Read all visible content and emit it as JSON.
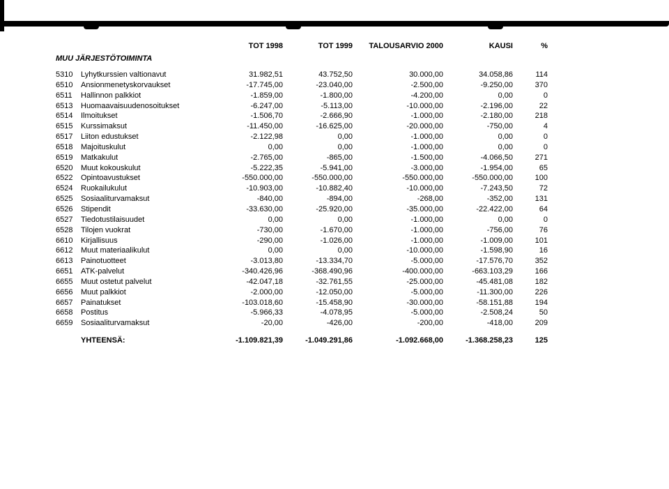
{
  "headers": {
    "c1": "TOT 1998",
    "c2": "TOT 1999",
    "c3": "TALOUSARVIO 2000",
    "c4": "KAUSI",
    "c5": "%"
  },
  "section_title": "MUU JÄRJESTÖTOIMINTA",
  "rows": [
    {
      "code": "5310",
      "label": "Lyhytkurssien valtionavut",
      "c1": "31.982,51",
      "c2": "43.752,50",
      "c3": "30.000,00",
      "c4": "34.058,86",
      "c5": "114"
    },
    {
      "code": "6510",
      "label": "Ansionmenetyskorvaukset",
      "c1": "-17.745,00",
      "c2": "-23.040,00",
      "c3": "-2.500,00",
      "c4": "-9.250,00",
      "c5": "370"
    },
    {
      "code": "6511",
      "label": "Hallinnon palkkiot",
      "c1": "-1.859,00",
      "c2": "-1.800,00",
      "c3": "-4.200,00",
      "c4": "0,00",
      "c5": "0"
    },
    {
      "code": "6513",
      "label": "Huomaavaisuudenosoitukset",
      "c1": "-6.247,00",
      "c2": "-5.113,00",
      "c3": "-10.000,00",
      "c4": "-2.196,00",
      "c5": "22"
    },
    {
      "code": "6514",
      "label": "Ilmoitukset",
      "c1": "-1.506,70",
      "c2": "-2.666,90",
      "c3": "-1.000,00",
      "c4": "-2.180,00",
      "c5": "218"
    },
    {
      "code": "6515",
      "label": "Kurssimaksut",
      "c1": "-11.450,00",
      "c2": "-16.625,00",
      "c3": "-20.000,00",
      "c4": "-750,00",
      "c5": "4"
    },
    {
      "code": "6517",
      "label": "Liiton edustukset",
      "c1": "-2.122,98",
      "c2": "0,00",
      "c3": "-1.000,00",
      "c4": "0,00",
      "c5": "0"
    },
    {
      "code": "6518",
      "label": "Majoituskulut",
      "c1": "0,00",
      "c2": "0,00",
      "c3": "-1.000,00",
      "c4": "0,00",
      "c5": "0"
    },
    {
      "code": "6519",
      "label": "Matkakulut",
      "c1": "-2.765,00",
      "c2": "-865,00",
      "c3": "-1.500,00",
      "c4": "-4.066,50",
      "c5": "271"
    },
    {
      "code": "6520",
      "label": "Muut kokouskulut",
      "c1": "-5.222,35",
      "c2": "-5.941,00",
      "c3": "-3.000,00",
      "c4": "-1.954,00",
      "c5": "65"
    },
    {
      "code": "6522",
      "label": "Opintoavustukset",
      "c1": "-550.000,00",
      "c2": "-550.000,00",
      "c3": "-550.000,00",
      "c4": "-550.000,00",
      "c5": "100"
    },
    {
      "code": "6524",
      "label": "Ruokailukulut",
      "c1": "-10.903,00",
      "c2": "-10.882,40",
      "c3": "-10.000,00",
      "c4": "-7.243,50",
      "c5": "72"
    },
    {
      "code": "6525",
      "label": "Sosiaaliturvamaksut",
      "c1": "-840,00",
      "c2": "-894,00",
      "c3": "-268,00",
      "c4": "-352,00",
      "c5": "131"
    },
    {
      "code": "6526",
      "label": "Stipendit",
      "c1": "-33.630,00",
      "c2": "-25.920,00",
      "c3": "-35.000,00",
      "c4": "-22.422,00",
      "c5": "64"
    },
    {
      "code": "6527",
      "label": "Tiedotustilaisuudet",
      "c1": "0,00",
      "c2": "0,00",
      "c3": "-1.000,00",
      "c4": "0,00",
      "c5": "0"
    },
    {
      "code": "6528",
      "label": "Tilojen vuokrat",
      "c1": "-730,00",
      "c2": "-1.670,00",
      "c3": "-1.000,00",
      "c4": "-756,00",
      "c5": "76"
    },
    {
      "code": "6610",
      "label": "Kirjallisuus",
      "c1": "-290,00",
      "c2": "-1.026,00",
      "c3": "-1.000,00",
      "c4": "-1.009,00",
      "c5": "101"
    },
    {
      "code": "6612",
      "label": "Muut materiaalikulut",
      "c1": "0,00",
      "c2": "0,00",
      "c3": "-10.000,00",
      "c4": "-1.598,90",
      "c5": "16"
    },
    {
      "code": "6613",
      "label": "Painotuotteet",
      "c1": "-3.013,80",
      "c2": "-13.334,70",
      "c3": "-5.000,00",
      "c4": "-17.576,70",
      "c5": "352"
    },
    {
      "code": "6651",
      "label": "ATK-palvelut",
      "c1": "-340.426,96",
      "c2": "-368.490,96",
      "c3": "-400.000,00",
      "c4": "-663.103,29",
      "c5": "166"
    },
    {
      "code": "6655",
      "label": "Muut ostetut palvelut",
      "c1": "-42.047,18",
      "c2": "-32.761,55",
      "c3": "-25.000,00",
      "c4": "-45.481,08",
      "c5": "182"
    },
    {
      "code": "6656",
      "label": "Muut palkkiot",
      "c1": "-2.000,00",
      "c2": "-12.050,00",
      "c3": "-5.000,00",
      "c4": "-11.300,00",
      "c5": "226"
    },
    {
      "code": "6657",
      "label": "Painatukset",
      "c1": "-103.018,60",
      "c2": "-15.458,90",
      "c3": "-30.000,00",
      "c4": "-58.151,88",
      "c5": "194"
    },
    {
      "code": "6658",
      "label": "Postitus",
      "c1": "-5.966,33",
      "c2": "-4.078,95",
      "c3": "-5.000,00",
      "c4": "-2.508,24",
      "c5": "50"
    },
    {
      "code": "6659",
      "label": "Sosiaaliturvamaksut",
      "c1": "-20,00",
      "c2": "-426,00",
      "c3": "-200,00",
      "c4": "-418,00",
      "c5": "209"
    }
  ],
  "total": {
    "label": "YHTEENSÄ:",
    "c1": "-1.109.821,39",
    "c2": "-1.049.291,86",
    "c3": "-1.092.668,00",
    "c4": "-1.368.258,23",
    "c5": "125"
  }
}
